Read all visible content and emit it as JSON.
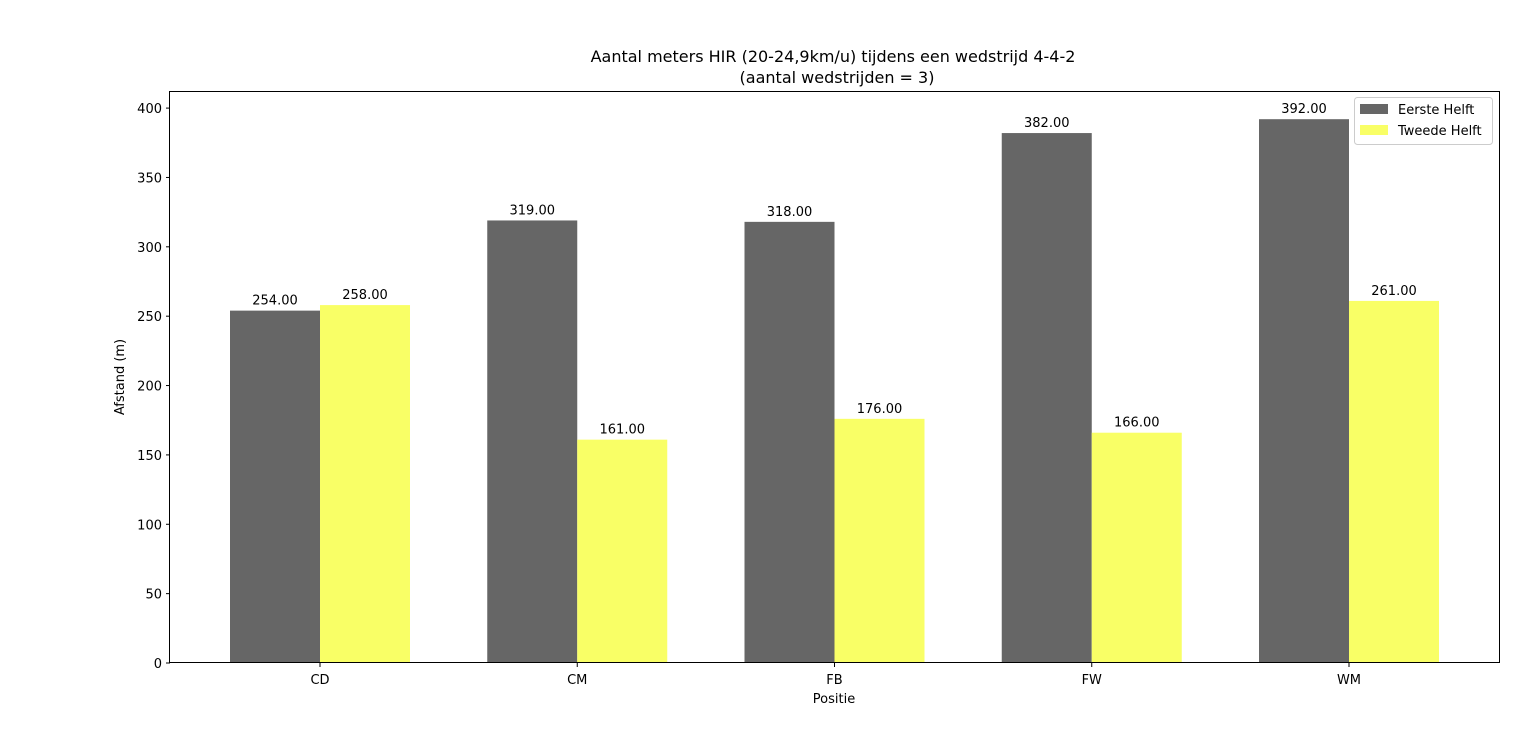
{
  "chart_data": {
    "type": "bar",
    "title": "Aantal meters HIR (20-24,9km/u) tijdens een wedstrijd 4-4-2",
    "subtitle": "(aantal wedstrijden = 3)",
    "xlabel": "Positie",
    "ylabel": "Afstand (m)",
    "categories": [
      "CD",
      "CM",
      "FB",
      "FW",
      "WM"
    ],
    "series": [
      {
        "name": "Eerste Helft",
        "values": [
          254,
          319,
          318,
          382,
          392
        ],
        "labels": [
          "254.00",
          "319.00",
          "318.00",
          "382.00",
          "392.00"
        ],
        "color": "#666666"
      },
      {
        "name": "Tweede Helft",
        "values": [
          258,
          161,
          176,
          166,
          261
        ],
        "labels": [
          "258.00",
          "161.00",
          "176.00",
          "166.00",
          "261.00"
        ],
        "color": "#f9ff66"
      }
    ],
    "ylim": [
      0,
      411.6
    ],
    "yticks": [
      0,
      50,
      100,
      150,
      200,
      250,
      300,
      350,
      400
    ],
    "ytick_labels": [
      "0",
      "50",
      "100",
      "150",
      "200",
      "250",
      "300",
      "350",
      "400"
    ],
    "grid": false,
    "legend_position": "top-right"
  }
}
